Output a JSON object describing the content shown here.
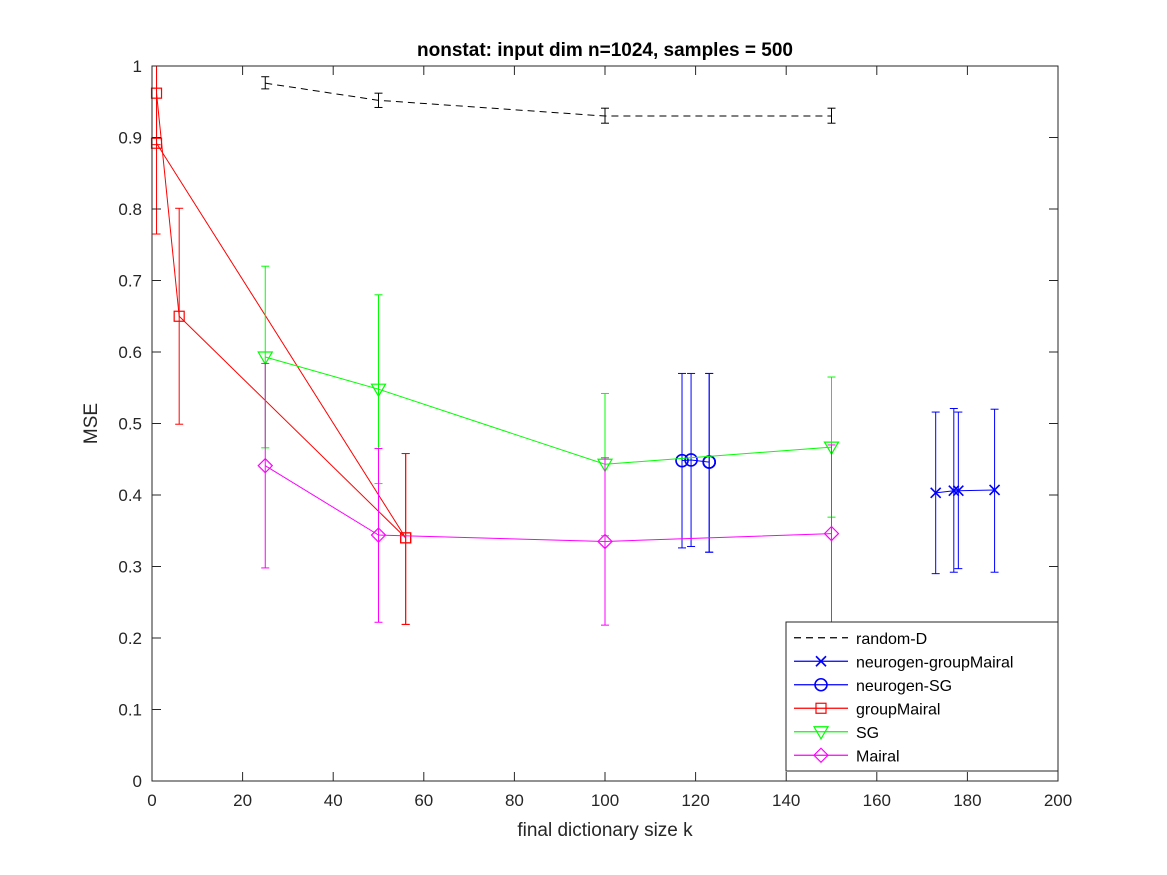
{
  "chart_data": {
    "type": "line",
    "title": "nonstat: input dim n=1024, samples = 500",
    "xlabel": "final dictionary size k",
    "ylabel": "MSE",
    "xlim": [
      0,
      200
    ],
    "ylim": [
      0,
      1
    ],
    "xticks": [
      "0",
      "20",
      "40",
      "60",
      "80",
      "100",
      "120",
      "140",
      "160",
      "180",
      "200"
    ],
    "yticks": [
      "0",
      "0.1",
      "0.2",
      "0.3",
      "0.4",
      "0.5",
      "0.6",
      "0.7",
      "0.8",
      "0.9",
      "1"
    ],
    "grid": false,
    "legend_position": "bottom-right",
    "series": [
      {
        "name": "random-D",
        "color": "#000000",
        "dash": "dashed",
        "marker": "none",
        "x": [
          25,
          50,
          100,
          150
        ],
        "y": [
          0.976,
          0.952,
          0.93,
          0.93
        ],
        "err_low": [
          0.968,
          0.942,
          0.92,
          0.92
        ],
        "err_high": [
          0.985,
          0.962,
          0.941,
          0.941
        ]
      },
      {
        "name": "neurogen-groupMairal",
        "color": "#0000ff",
        "dash": "solid",
        "marker": "x",
        "x": [
          173,
          177,
          178,
          186
        ],
        "y": [
          0.403,
          0.406,
          0.406,
          0.407
        ],
        "err_low": [
          0.29,
          0.292,
          0.297,
          0.292
        ],
        "err_high": [
          0.516,
          0.521,
          0.516,
          0.52
        ]
      },
      {
        "name": "neurogen-SG",
        "color": "#0000ff",
        "dash": "solid",
        "marker": "circle",
        "x": [
          117,
          119,
          123,
          123
        ],
        "y": [
          0.448,
          0.449,
          0.446,
          0.446
        ],
        "err_low": [
          0.326,
          0.328,
          0.32,
          0.32
        ],
        "err_high": [
          0.57,
          0.57,
          0.57,
          0.57
        ]
      },
      {
        "name": "groupMairal",
        "color": "#ff0000",
        "dash": "solid",
        "marker": "square",
        "x": [
          1,
          6,
          56,
          1,
          56
        ],
        "y": [
          0.962,
          0.65,
          0.34,
          0.892,
          0.34
        ],
        "err_low": [
          0.89,
          0.499,
          0.219,
          0.765,
          0.219
        ],
        "err_high": [
          1.0,
          0.801,
          0.458,
          1.0,
          0.458
        ]
      },
      {
        "name": "SG",
        "color": "#00ff00",
        "dash": "solid",
        "marker": "triangle-down",
        "x": [
          25,
          50,
          100,
          150
        ],
        "y": [
          0.593,
          0.548,
          0.443,
          0.467
        ],
        "err_low": [
          0.466,
          0.416,
          0.343,
          0.369
        ],
        "err_high": [
          0.72,
          0.68,
          0.542,
          0.565
        ]
      },
      {
        "name": "Mairal",
        "color": "#ff00ff",
        "dash": "solid",
        "marker": "diamond",
        "x": [
          25,
          50,
          100,
          150
        ],
        "y": [
          0.441,
          0.344,
          0.335,
          0.346
        ],
        "err_low": [
          0.298,
          0.222,
          0.218,
          0.222
        ],
        "err_high": [
          0.584,
          0.465,
          0.452,
          0.47
        ]
      }
    ]
  }
}
